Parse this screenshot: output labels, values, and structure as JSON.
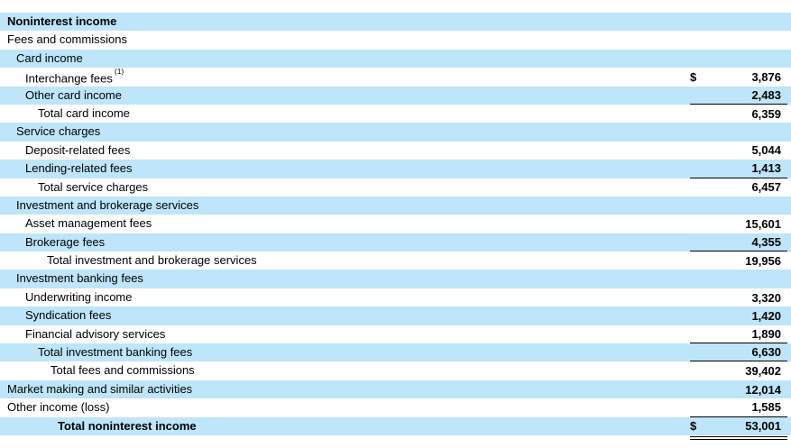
{
  "table": {
    "title_row": "Noninterest income",
    "colors": {
      "row_shaded": "#bee5fa",
      "row_plain": "#ffffff",
      "text": "#000000",
      "rule": "#000000"
    },
    "rows": [
      {
        "label": "Noninterest income",
        "indent": 0,
        "shaded": true,
        "bold": true
      },
      {
        "label": "Fees and commissions",
        "indent": 0,
        "shaded": false
      },
      {
        "label": "Card income",
        "indent": 1,
        "shaded": true
      },
      {
        "label": "Interchange fees",
        "footnote": "(1)",
        "indent": 2,
        "shaded": false,
        "currency": "$",
        "value": "3,876"
      },
      {
        "label": "Other card income",
        "indent": 2,
        "shaded": true,
        "value": "2,483",
        "underline": "single"
      },
      {
        "label": "Total card income",
        "indent": 3,
        "shaded": false,
        "value": "6,359"
      },
      {
        "label": "Service charges",
        "indent": 1,
        "shaded": true
      },
      {
        "label": "Deposit-related fees",
        "indent": 2,
        "shaded": false,
        "value": "5,044"
      },
      {
        "label": "Lending-related fees",
        "indent": 2,
        "shaded": true,
        "value": "1,413",
        "underline": "single"
      },
      {
        "label": "Total service charges",
        "indent": 3,
        "shaded": false,
        "value": "6,457"
      },
      {
        "label": "Investment and brokerage services",
        "indent": 1,
        "shaded": true
      },
      {
        "label": "Asset management fees",
        "indent": 2,
        "shaded": false,
        "value": "15,601"
      },
      {
        "label": "Brokerage fees",
        "indent": 2,
        "shaded": true,
        "value": "4,355",
        "underline": "single"
      },
      {
        "label": "Total investment and brokerage services",
        "indent": 4,
        "shaded": false,
        "value": "19,956"
      },
      {
        "label": "Investment banking fees",
        "indent": 1,
        "shaded": true
      },
      {
        "label": "Underwriting income",
        "indent": 2,
        "shaded": false,
        "value": "3,320"
      },
      {
        "label": "Syndication fees",
        "indent": 2,
        "shaded": true,
        "value": "1,420"
      },
      {
        "label": "Financial advisory services",
        "indent": 2,
        "shaded": false,
        "value": "1,890",
        "underline": "single"
      },
      {
        "label": "Total investment banking fees",
        "indent": 3,
        "shaded": true,
        "value": "6,630",
        "underline": "single"
      },
      {
        "label": "Total fees and commissions",
        "indent": 5,
        "shaded": false,
        "value": "39,402"
      },
      {
        "label": "Market making and similar activities",
        "indent": 0,
        "shaded": true,
        "value": "12,014"
      },
      {
        "label": "Other income (loss)",
        "indent": 0,
        "shaded": false,
        "value": "1,585",
        "underline": "single"
      },
      {
        "label": "Total noninterest income",
        "indent": 6,
        "shaded": true,
        "bold": true,
        "currency": "$",
        "value": "53,001",
        "underline": "double"
      }
    ]
  }
}
